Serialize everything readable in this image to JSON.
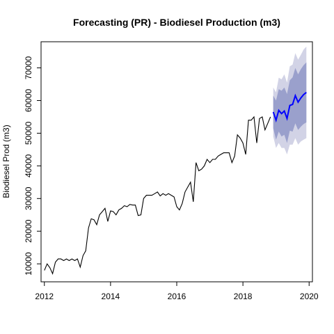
{
  "chart_data": {
    "type": "line",
    "title": "Forecasting (PR) - Biodiesel Production (m3)",
    "xlabel": "",
    "ylabel": "Biodiesel Prod (m3)",
    "xlim": [
      2011.9,
      2020.1
    ],
    "ylim": [
      4500,
      78000
    ],
    "x_ticks": [
      2012,
      2014,
      2016,
      2018,
      2020
    ],
    "x_tick_labels": [
      "2012",
      "2014",
      "2016",
      "2018",
      "2020"
    ],
    "y_ticks": [
      10000,
      20000,
      30000,
      40000,
      50000,
      60000,
      70000
    ],
    "y_tick_labels": [
      "10000",
      "20000",
      "30000",
      "40000",
      "50000",
      "60000",
      "70000"
    ],
    "grid": false,
    "legend": "none",
    "colors": {
      "history": "#000000",
      "forecast": "#0000ff",
      "band_80": "#9aa0cc",
      "band_95": "#d2d3e6"
    },
    "series": [
      {
        "role": "history",
        "x": [
          2012.0,
          2012.083,
          2012.167,
          2012.25,
          2012.333,
          2012.417,
          2012.5,
          2012.583,
          2012.667,
          2012.75,
          2012.833,
          2012.917,
          2013.0,
          2013.083,
          2013.167,
          2013.25,
          2013.333,
          2013.417,
          2013.5,
          2013.583,
          2013.667,
          2013.75,
          2013.833,
          2013.917,
          2014.0,
          2014.083,
          2014.167,
          2014.25,
          2014.333,
          2014.417,
          2014.5,
          2014.583,
          2014.667,
          2014.75,
          2014.833,
          2014.917,
          2015.0,
          2015.083,
          2015.167,
          2015.25,
          2015.333,
          2015.417,
          2015.5,
          2015.583,
          2015.667,
          2015.75,
          2015.833,
          2015.917,
          2016.0,
          2016.083,
          2016.167,
          2016.25,
          2016.333,
          2016.417,
          2016.5,
          2016.583,
          2016.667,
          2016.75,
          2016.833,
          2016.917,
          2017.0,
          2017.083,
          2017.167,
          2017.25,
          2017.333,
          2017.417,
          2017.5,
          2017.583,
          2017.667,
          2017.75,
          2017.833,
          2017.917,
          2018.0,
          2018.083,
          2018.167,
          2018.25,
          2018.333,
          2018.417,
          2018.5,
          2018.583,
          2018.667,
          2018.75,
          2018.833
        ],
        "values": [
          8000,
          10000,
          8800,
          7000,
          10500,
          11500,
          11500,
          11000,
          11500,
          11000,
          11500,
          11000,
          11500,
          9000,
          12500,
          14000,
          21000,
          23800,
          23500,
          22000,
          25000,
          26000,
          27000,
          23000,
          26200,
          26000,
          25000,
          26500,
          27000,
          27800,
          27500,
          28200,
          28000,
          28000,
          24800,
          25000,
          30000,
          31000,
          31000,
          31000,
          31500,
          32000,
          30800,
          31500,
          31000,
          31500,
          31000,
          30500,
          27500,
          26500,
          28500,
          32000,
          33500,
          35000,
          29000,
          41000,
          38500,
          39000,
          40000,
          42000,
          41000,
          42000,
          42000,
          43000,
          43500,
          44000,
          44000,
          44000,
          41000,
          43000,
          49500,
          48500,
          47000,
          43500,
          54000,
          54000,
          55000,
          47000,
          54500,
          55000,
          51000,
          53000,
          55000
        ]
      },
      {
        "role": "forecast",
        "x": [
          2018.917,
          2019.0,
          2019.083,
          2019.167,
          2019.25,
          2019.333,
          2019.417,
          2019.5,
          2019.583,
          2019.667,
          2019.75,
          2019.833,
          2019.917
        ],
        "values": [
          56500,
          54000,
          57000,
          56000,
          56800,
          54500,
          58500,
          58800,
          61500,
          59500,
          60800,
          61800,
          62500
        ],
        "lo80": [
          51500,
          48000,
          50500,
          49000,
          49500,
          47000,
          50800,
          50500,
          53000,
          51000,
          52000,
          52800,
          53300
        ],
        "hi80": [
          61500,
          60000,
          63500,
          63000,
          64000,
          62000,
          66200,
          67100,
          70000,
          68000,
          69600,
          70800,
          71700
        ],
        "lo95": [
          49000,
          45500,
          47000,
          45500,
          45500,
          43500,
          46500,
          46500,
          48500,
          46500,
          47500,
          48000,
          48500
        ],
        "hi95": [
          64000,
          62500,
          67000,
          66500,
          68000,
          65500,
          70500,
          71000,
          74500,
          72500,
          74000,
          75600,
          76500
        ]
      }
    ]
  }
}
